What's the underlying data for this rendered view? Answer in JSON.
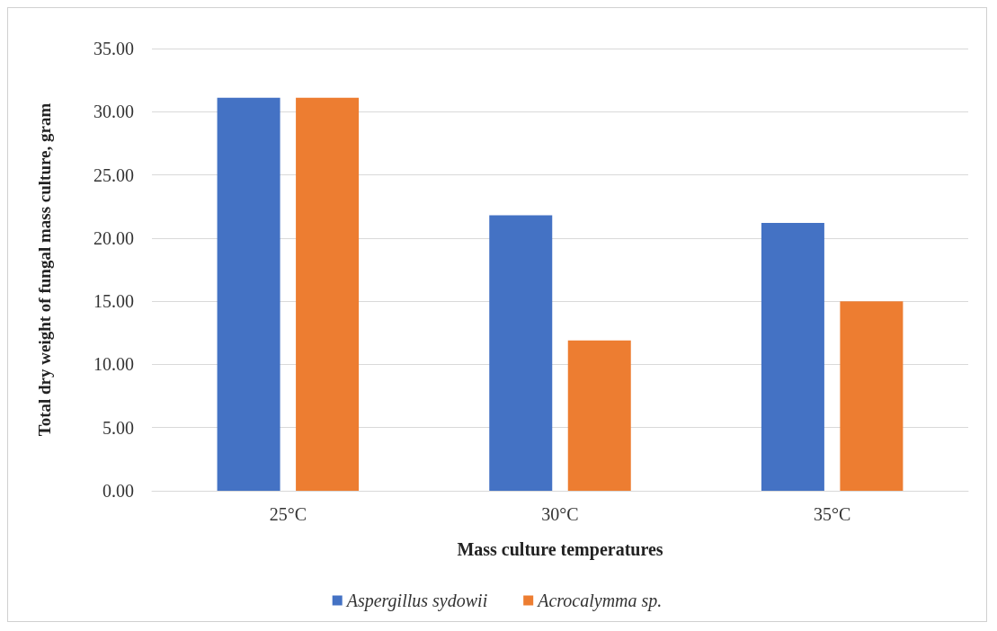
{
  "chart_data": {
    "type": "bar",
    "xlabel": "Mass culture temperatures",
    "ylabel": "Total dry weight of fungal mass culture, gram",
    "categories": [
      "25°C",
      "30°C",
      "35°C"
    ],
    "series": [
      {
        "name": "Aspergillus sydowii",
        "color": "#4472c4",
        "values": [
          31.1,
          21.8,
          21.2
        ]
      },
      {
        "name": "Acrocalymma sp.",
        "color": "#ed7d31",
        "values": [
          31.1,
          11.9,
          15.0
        ]
      }
    ],
    "ylim": [
      0,
      35
    ],
    "yticks": [
      {
        "value": 0,
        "label": "0.00"
      },
      {
        "value": 5,
        "label": "5.00"
      },
      {
        "value": 10,
        "label": "10.00"
      },
      {
        "value": 15,
        "label": "15.00"
      },
      {
        "value": 20,
        "label": "20.00"
      },
      {
        "value": 25,
        "label": "25.00"
      },
      {
        "value": 30,
        "label": "30.00"
      },
      {
        "value": 35,
        "label": "35.00"
      }
    ],
    "grid": "y",
    "legend": "bottom"
  }
}
